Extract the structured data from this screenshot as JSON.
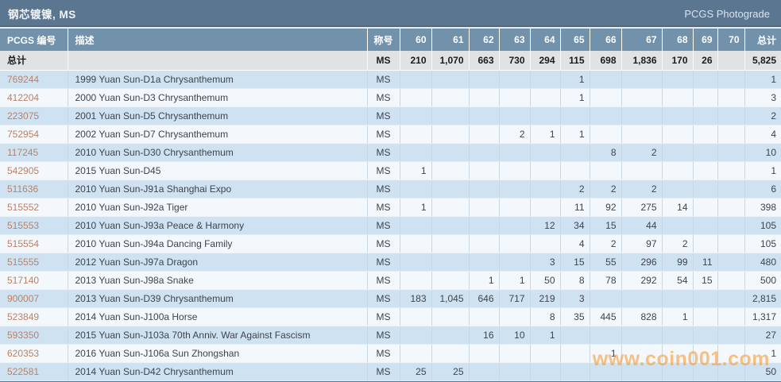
{
  "title_bar": {
    "title": "钢芯镀镍, MS",
    "right_label": "PCGS Photograde"
  },
  "watermark": "www.coin001.com",
  "colors": {
    "titlebar_bg": "#5b7690",
    "header_bg": "#7291ab",
    "header_text": "#ffffff",
    "totals_bg": "#e1e2e4",
    "row_blue": "#cfe2f2",
    "row_white": "#f3f8fc",
    "cell_border": "#c9d7e3",
    "link_text": "#bb8166",
    "body_text": "#3e444b",
    "bottom_border": "#5b7690",
    "watermark_orange": "#f39f3e"
  },
  "table": {
    "headers": [
      "PCGS 编号",
      "描述",
      "称号",
      "60",
      "61",
      "62",
      "63",
      "64",
      "65",
      "66",
      "67",
      "68",
      "69",
      "70",
      "总计"
    ],
    "totals_row": {
      "label": "总计",
      "description": "",
      "designation": "MS",
      "grades": [
        "210",
        "1,070",
        "663",
        "730",
        "294",
        "115",
        "698",
        "1,836",
        "170",
        "26",
        ""
      ],
      "total": "5,825"
    },
    "rows": [
      {
        "pcgs": "769244",
        "desc": "1999 Yuan Sun-D1a Chrysanthemum",
        "designation": "MS",
        "grades": [
          "",
          "",
          "",
          "",
          "",
          "1",
          "",
          "",
          "",
          "",
          ""
        ],
        "total": "1"
      },
      {
        "pcgs": "412204",
        "desc": "2000 Yuan Sun-D3 Chrysanthemum",
        "designation": "MS",
        "grades": [
          "",
          "",
          "",
          "",
          "",
          "1",
          "",
          "",
          "",
          "",
          ""
        ],
        "total": "3"
      },
      {
        "pcgs": "223075",
        "desc": "2001 Yuan Sun-D5 Chrysanthemum",
        "designation": "MS",
        "grades": [
          "",
          "",
          "",
          "",
          "",
          "",
          "",
          "",
          "",
          "",
          ""
        ],
        "total": "2"
      },
      {
        "pcgs": "752954",
        "desc": "2002 Yuan Sun-D7 Chrysanthemum",
        "designation": "MS",
        "grades": [
          "",
          "",
          "",
          "2",
          "1",
          "1",
          "",
          "",
          "",
          "",
          ""
        ],
        "total": "4"
      },
      {
        "pcgs": "117245",
        "desc": "2010 Yuan Sun-D30 Chrysanthemum",
        "designation": "MS",
        "grades": [
          "",
          "",
          "",
          "",
          "",
          "",
          "8",
          "2",
          "",
          "",
          ""
        ],
        "total": "10"
      },
      {
        "pcgs": "542905",
        "desc": "2015 Yuan Sun-D45",
        "designation": "MS",
        "grades": [
          "1",
          "",
          "",
          "",
          "",
          "",
          "",
          "",
          "",
          "",
          ""
        ],
        "total": "1"
      },
      {
        "pcgs": "511636",
        "desc": "2010 Yuan Sun-J91a Shanghai Expo",
        "designation": "MS",
        "grades": [
          "",
          "",
          "",
          "",
          "",
          "2",
          "2",
          "2",
          "",
          "",
          ""
        ],
        "total": "6"
      },
      {
        "pcgs": "515552",
        "desc": "2010 Yuan Sun-J92a Tiger",
        "designation": "MS",
        "grades": [
          "1",
          "",
          "",
          "",
          "",
          "11",
          "92",
          "275",
          "14",
          "",
          ""
        ],
        "total": "398"
      },
      {
        "pcgs": "515553",
        "desc": "2010 Yuan Sun-J93a Peace & Harmony",
        "designation": "MS",
        "grades": [
          "",
          "",
          "",
          "",
          "12",
          "34",
          "15",
          "44",
          "",
          "",
          ""
        ],
        "total": "105"
      },
      {
        "pcgs": "515554",
        "desc": "2010 Yuan Sun-J94a Dancing Family",
        "designation": "MS",
        "grades": [
          "",
          "",
          "",
          "",
          "",
          "4",
          "2",
          "97",
          "2",
          "",
          ""
        ],
        "total": "105"
      },
      {
        "pcgs": "515555",
        "desc": "2012 Yuan Sun-J97a Dragon",
        "designation": "MS",
        "grades": [
          "",
          "",
          "",
          "",
          "3",
          "15",
          "55",
          "296",
          "99",
          "11",
          ""
        ],
        "total": "480"
      },
      {
        "pcgs": "517140",
        "desc": "2013 Yuan Sun-J98a Snake",
        "designation": "MS",
        "grades": [
          "",
          "",
          "1",
          "1",
          "50",
          "8",
          "78",
          "292",
          "54",
          "15",
          ""
        ],
        "total": "500"
      },
      {
        "pcgs": "900007",
        "desc": "2013 Yuan Sun-D39 Chrysanthemum",
        "designation": "MS",
        "grades": [
          "183",
          "1,045",
          "646",
          "717",
          "219",
          "3",
          "",
          "",
          "",
          "",
          ""
        ],
        "total": "2,815"
      },
      {
        "pcgs": "523849",
        "desc": "2014 Yuan Sun-J100a Horse",
        "designation": "MS",
        "grades": [
          "",
          "",
          "",
          "",
          "8",
          "35",
          "445",
          "828",
          "1",
          "",
          ""
        ],
        "total": "1,317"
      },
      {
        "pcgs": "593350",
        "desc": "2015 Yuan Sun-J103a 70th Anniv. War Against Fascism",
        "designation": "MS",
        "grades": [
          "",
          "",
          "16",
          "10",
          "1",
          "",
          "",
          "",
          "",
          "",
          ""
        ],
        "total": "27"
      },
      {
        "pcgs": "620353",
        "desc": "2016 Yuan Sun-J106a Sun Zhongshan",
        "designation": "MS",
        "grades": [
          "",
          "",
          "",
          "",
          "",
          "",
          "1",
          "",
          "",
          "",
          ""
        ],
        "total": "1"
      },
      {
        "pcgs": "522581",
        "desc": "2014 Yuan Sun-D42 Chrysanthemum",
        "designation": "MS",
        "grades": [
          "25",
          "25",
          "",
          "",
          "",
          "",
          "",
          "",
          "",
          "",
          ""
        ],
        "total": "50"
      }
    ]
  }
}
